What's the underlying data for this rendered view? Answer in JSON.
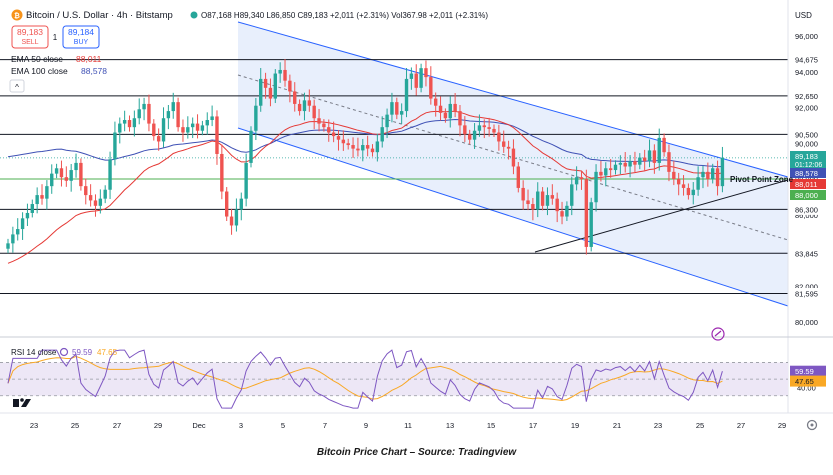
{
  "header": {
    "symbol_title": "Bitcoin / U.S. Dollar · 4h · Bitstamp",
    "ohlc": "O87,168 H89,340 L86,850 C89,183 +2,011 (+2.31%) Vol367.98 +2,011 (+2.31%)",
    "currency": "USD",
    "sell_price": "89,183",
    "sell_label": "SELL",
    "spread": "1",
    "buy_price": "89,184",
    "buy_label": "BUY",
    "ema50_label": "EMA 50 close",
    "ema50_value": "88,011",
    "ema100_label": "EMA 100 close",
    "ema100_value": "88,578",
    "collapse_glyph": "^"
  },
  "rsi": {
    "label": "RSI 14 close",
    "value1": "59.59",
    "value2": "47.65"
  },
  "caption": "Bitcoin Price Chart – Source: Tradingview",
  "colors": {
    "up": "#26a69a",
    "down": "#ef5350",
    "ema50": "#e53935",
    "ema100": "#3f51b5",
    "channel_fill": "#e8effc",
    "channel_line": "#2962ff",
    "rsi_band": "#ede7f6",
    "rsi_line": "#7e57c2",
    "rsi_ma": "#f9a825",
    "green_line": "#4caf50"
  },
  "chart_data": {
    "type": "candlestick",
    "title": "Bitcoin / U.S. Dollar · 4h · Bitstamp",
    "x_tick_labels": [
      "23",
      "25",
      "27",
      "29",
      "Dec",
      "3",
      "5",
      "7",
      "9",
      "11",
      "13",
      "15",
      "17",
      "19",
      "21",
      "23",
      "25",
      "27",
      "29"
    ],
    "y_tick_labels": [
      "96,000",
      "94,000",
      "92,000",
      "90,000",
      "88,000",
      "86,000",
      "84,000",
      "82,000",
      "80,000"
    ],
    "ylim": [
      79000,
      97000
    ],
    "horizontal_levels": [
      {
        "label": "94,675",
        "price": 94675
      },
      {
        "label": "92,650",
        "price": 92650
      },
      {
        "label": "90,500",
        "price": 90500
      },
      {
        "label": "86,300",
        "price": 86300
      },
      {
        "label": "83,845",
        "price": 83845
      },
      {
        "label": "81,595",
        "price": 81595
      }
    ],
    "price_tags": [
      {
        "label": "89,183",
        "sub": "01:12:06",
        "price": 89183,
        "color": "#26a69a"
      },
      {
        "label": "88,578",
        "price": 88578,
        "color": "#3f51b5"
      },
      {
        "label": "88,011",
        "price": 88011,
        "color": "#e53935"
      },
      {
        "label": "88,000",
        "price": 88000,
        "color": "#4caf50"
      }
    ],
    "annotation": "Pivot Point Zone",
    "ema50": {
      "name": "EMA 50 close",
      "last": 88011
    },
    "ema100": {
      "name": "EMA 100 close",
      "last": 88578
    },
    "last_close": 89183,
    "rsi": {
      "name": "RSI 14 close",
      "last": 59.59,
      "ma_last": 47.65,
      "y_tick_labels": [
        "60.00",
        "40.00"
      ],
      "levels": [
        70,
        50,
        30
      ]
    },
    "closes": [
      84400,
      84900,
      85200,
      85800,
      86100,
      86600,
      87100,
      86900,
      87600,
      88300,
      88600,
      88100,
      87900,
      88500,
      88900,
      87600,
      87100,
      86800,
      86500,
      86900,
      87400,
      89100,
      90600,
      91100,
      91300,
      90900,
      91400,
      91900,
      92200,
      91100,
      90400,
      90100,
      91400,
      91800,
      92300,
      90900,
      90600,
      90900,
      91100,
      90700,
      91000,
      91300,
      91500,
      89400,
      87300,
      85900,
      85400,
      86300,
      86900,
      88900,
      90700,
      92100,
      93600,
      93100,
      92500,
      93900,
      94100,
      93500,
      92900,
      92200,
      91800,
      92400,
      92100,
      91400,
      91100,
      90900,
      90600,
      90400,
      90200,
      90000,
      89900,
      89700,
      89600,
      89900,
      89700,
      89500,
      90100,
      90900,
      91600,
      92300,
      91600,
      91800,
      93600,
      93900,
      93100,
      94200,
      93700,
      92500,
      92100,
      91700,
      91400,
      92200,
      91800,
      91000,
      90500,
      90200,
      90700,
      91000,
      90900,
      90800,
      90600,
      90100,
      89800,
      89700,
      88700,
      87500,
      86800,
      86600,
      86300,
      87300,
      86500,
      87100,
      86900,
      86200,
      85900,
      86500,
      87700,
      88100,
      88000,
      84200,
      86700,
      88400,
      88200,
      88600,
      88500,
      88800,
      88900,
      88700,
      89000,
      88800,
      89200,
      89000,
      89600,
      88900,
      90300,
      89500,
      88400,
      88000,
      87700,
      87500,
      87100,
      87400,
      88100,
      88400,
      88000,
      88600,
      87600,
      89183
    ]
  }
}
